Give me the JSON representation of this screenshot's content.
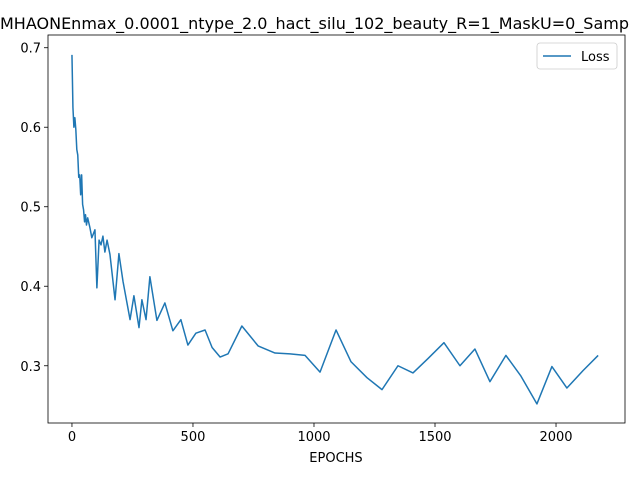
{
  "chart_data": {
    "type": "line",
    "title": "MHAONEnmax_0.0001_ntype_2.0_hact_silu_102_beauty_R=1_MaskU=0_Samp",
    "xlabel": "EPOCHS",
    "x": [
      0,
      4,
      8,
      12,
      16,
      20,
      24,
      28,
      32,
      36,
      40,
      44,
      48,
      52,
      56,
      60,
      65,
      74,
      82,
      95,
      103,
      112,
      120,
      128,
      136,
      145,
      157,
      178,
      194,
      211,
      240,
      256,
      277,
      289,
      306,
      322,
      351,
      384,
      417,
      450,
      479,
      512,
      550,
      579,
      612,
      645,
      702,
      769,
      839,
      901,
      963,
      1025,
      1091,
      1153,
      1219,
      1281,
      1347,
      1409,
      1471,
      1537,
      1603,
      1665,
      1727,
      1793,
      1855,
      1921,
      1983,
      2045,
      2112,
      2174
    ],
    "series": [
      {
        "name": "Loss",
        "color": "#1f77b4",
        "values": [
          0.691,
          0.625,
          0.6,
          0.612,
          0.597,
          0.572,
          0.565,
          0.537,
          0.54,
          0.515,
          0.54,
          0.503,
          0.496,
          0.481,
          0.49,
          0.477,
          0.486,
          0.474,
          0.461,
          0.471,
          0.398,
          0.458,
          0.452,
          0.463,
          0.443,
          0.458,
          0.44,
          0.383,
          0.441,
          0.406,
          0.358,
          0.388,
          0.348,
          0.383,
          0.358,
          0.412,
          0.357,
          0.379,
          0.344,
          0.358,
          0.326,
          0.341,
          0.345,
          0.323,
          0.311,
          0.315,
          0.35,
          0.325,
          0.316,
          0.315,
          0.313,
          0.292,
          0.345,
          0.305,
          0.285,
          0.27,
          0.3,
          0.291,
          0.309,
          0.329,
          0.3,
          0.321,
          0.28,
          0.313,
          0.287,
          0.252,
          0.299,
          0.272,
          0.294,
          0.313
        ]
      }
    ],
    "xlim": [
      -99,
      2285
    ],
    "xticks": [
      0,
      500,
      1000,
      1500,
      2000
    ],
    "ylim": [
      0.228,
      0.716
    ],
    "yticks": [
      0.3,
      0.4,
      0.5,
      0.6,
      0.7
    ],
    "legend": "upper right"
  }
}
